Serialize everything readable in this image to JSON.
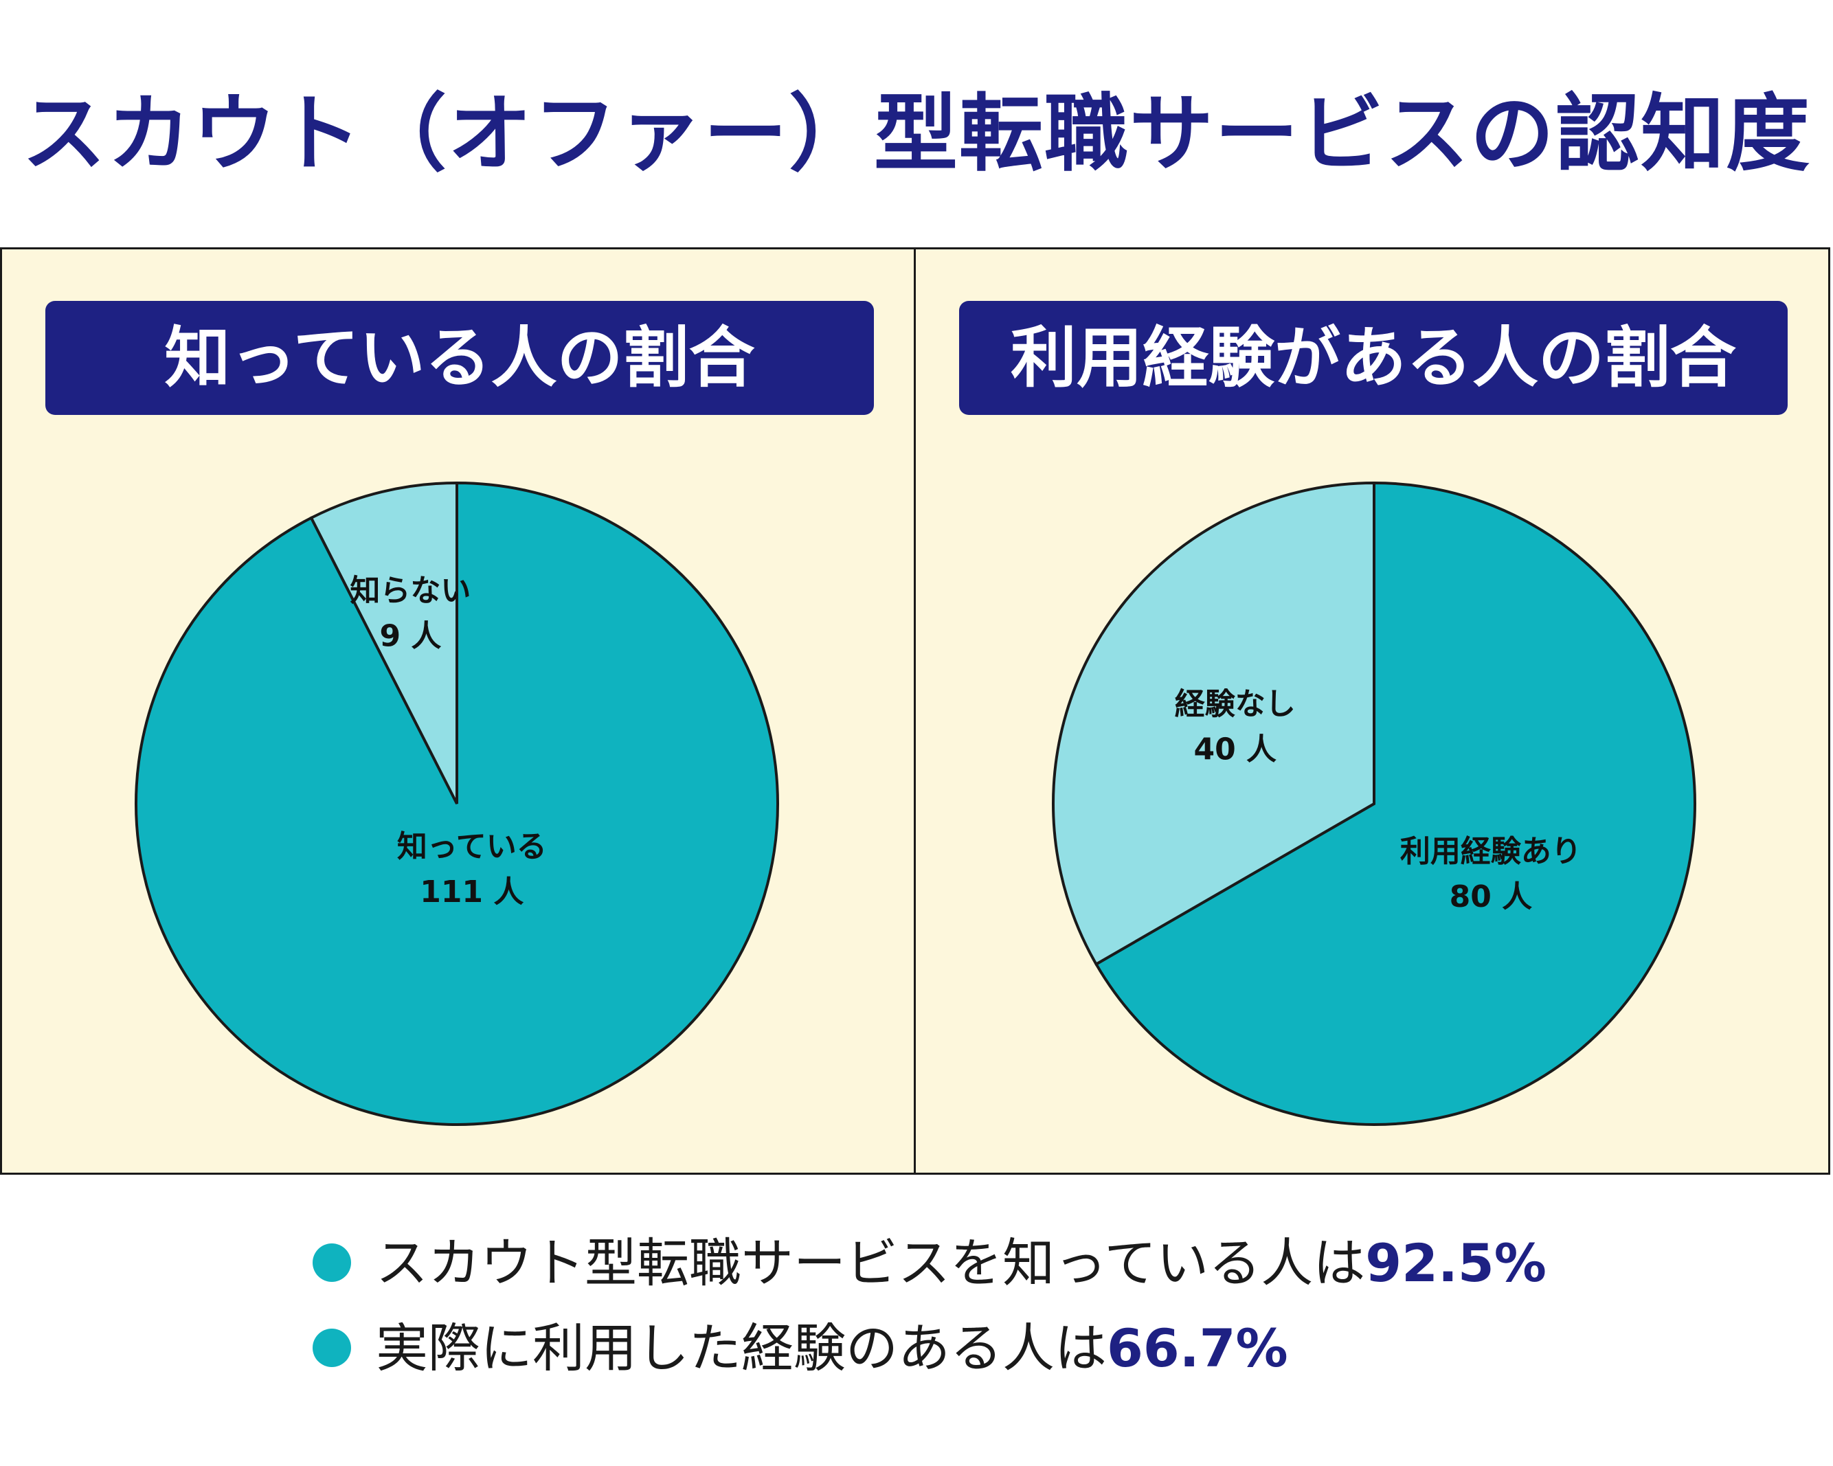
{
  "title": "スカウト（オファー）型転職サービスの認知度",
  "colors": {
    "navy": "#1e2183",
    "teal": "#0fb3bf",
    "light_teal": "#93dfe5",
    "panel_bg": "#fdf7dc",
    "stroke": "#1a1a1a"
  },
  "summary": [
    {
      "text": "スカウト型転職サービスを知っている人は",
      "highlight": "92.5%"
    },
    {
      "text": "実際に利用した経験のある人は",
      "highlight": "66.7%"
    }
  ],
  "chart_data": [
    {
      "type": "pie",
      "title": "知っている人の割合",
      "slices": [
        {
          "label": "知らない",
          "count_label": "9 人",
          "value": 9,
          "color": "#93dfe5"
        },
        {
          "label": "知っている",
          "count_label": "111 人",
          "value": 111,
          "color": "#0fb3bf"
        }
      ]
    },
    {
      "type": "pie",
      "title": "利用経験がある人の割合",
      "slices": [
        {
          "label": "利用経験あり",
          "count_label": "80 人",
          "value": 80,
          "color": "#0fb3bf"
        },
        {
          "label": "経験なし",
          "count_label": "40 人",
          "value": 40,
          "color": "#93dfe5"
        }
      ]
    }
  ]
}
